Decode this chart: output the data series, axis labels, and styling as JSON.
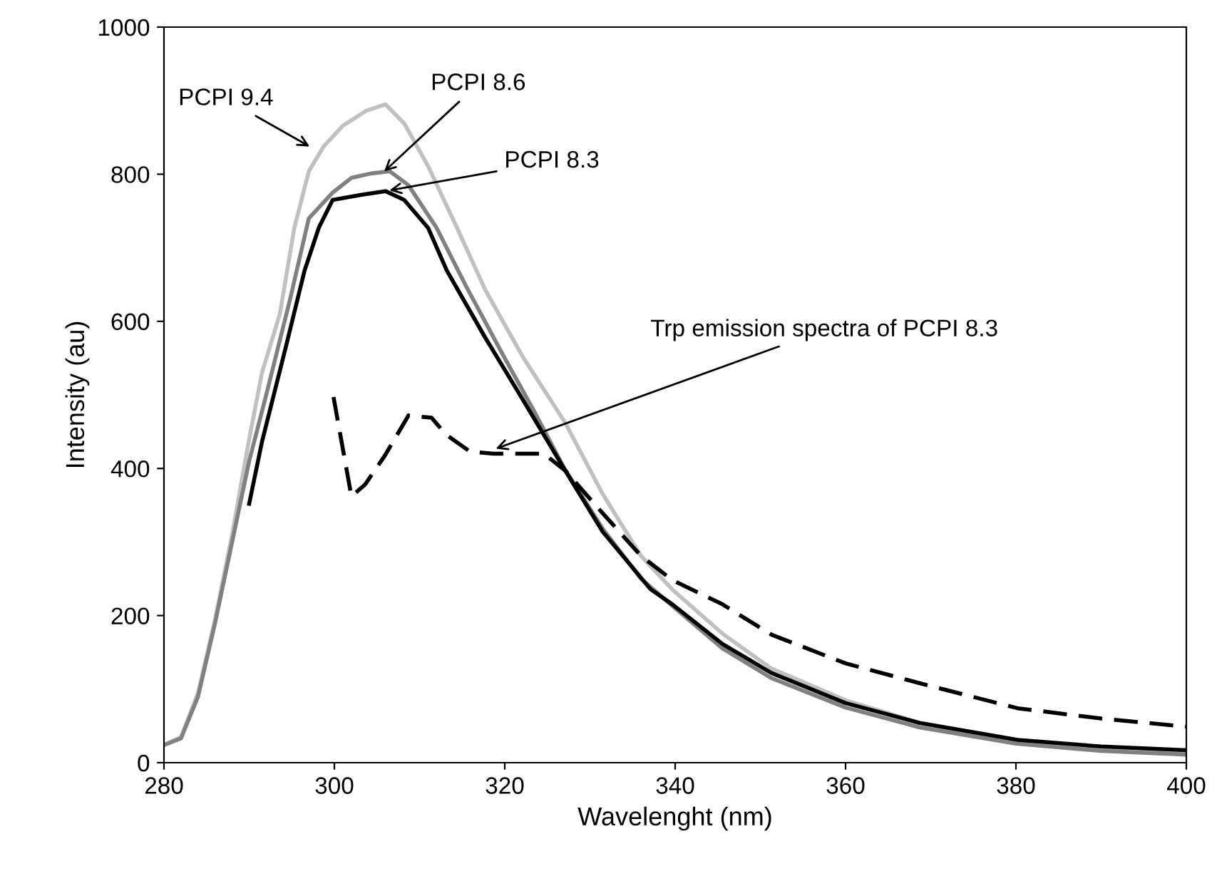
{
  "chart_data": {
    "type": "line",
    "xlabel": "Wavelenght (nm)",
    "ylabel": "Intensity (au)",
    "xlim": [
      280,
      400
    ],
    "xticks": [
      280,
      300,
      320,
      340,
      360,
      380,
      400
    ],
    "ylim": [
      0,
      1000
    ],
    "yticks": [
      0,
      200,
      400,
      600,
      800,
      1000
    ],
    "grid": false,
    "legend": false,
    "marker": "none",
    "series": [
      {
        "color": "#c0c0c0",
        "line_style": "solid",
        "x": [
          280,
          282,
          284,
          286,
          288,
          290,
          291.5,
          293.6,
          295.3,
          297,
          298.7,
          301,
          303.7,
          306,
          308.2,
          311,
          314.4,
          317.7,
          322.1,
          327.1,
          331.5,
          336,
          339.7,
          345.6,
          351.3,
          360,
          368.7,
          380,
          390,
          400
        ],
        "values": [
          24,
          35,
          95,
          195,
          310,
          440,
          530,
          610,
          727,
          804,
          837,
          866,
          886,
          895,
          869,
          811,
          727,
          643,
          552,
          462,
          365,
          281,
          235,
          175,
          128,
          85,
          54,
          28,
          18,
          14
        ]
      },
      {
        "color": "#808080",
        "line_style": "solid",
        "x": [
          280,
          282,
          284,
          286,
          288,
          290,
          292,
          294.8,
          297,
          299.8,
          302,
          304.3,
          306.5,
          308.7,
          312,
          315.4,
          319.9,
          323.3,
          327,
          331.5,
          336,
          340,
          345.6,
          351.3,
          360,
          368.7,
          380,
          390,
          400
        ],
        "values": [
          24,
          33,
          90,
          190,
          300,
          410,
          500,
          630,
          740,
          775,
          795,
          801,
          804,
          785,
          727,
          649,
          552,
          481,
          400,
          318,
          250,
          210,
          155,
          115,
          75,
          48,
          26,
          16,
          11
        ]
      },
      {
        "color": "#000000",
        "line_style": "solid",
        "x": [
          290,
          291.5,
          294.3,
          296.5,
          298.2,
          299.8,
          303.2,
          306,
          308.2,
          311,
          313.2,
          317.7,
          322.1,
          327.1,
          331.5,
          337.1,
          339.7,
          345.6,
          351.3,
          360,
          368.7,
          380.2,
          390,
          400
        ],
        "values": [
          352,
          436,
          565,
          669,
          728,
          765,
          772,
          777,
          765,
          727,
          669,
          578,
          494,
          397,
          314,
          236,
          215,
          161,
          122,
          81,
          54,
          31,
          22,
          17
        ]
      },
      {
        "color": "#000000",
        "line_style": "dashed",
        "x": [
          299.9,
          302,
          303.6,
          305.9,
          308.7,
          311.4,
          313.1,
          315.9,
          318.7,
          321.5,
          324.6,
          327.1,
          331.5,
          336,
          339.7,
          345.6,
          351.3,
          360,
          368.7,
          380.2,
          390,
          400
        ],
        "values": [
          497,
          362,
          378,
          417,
          472,
          469,
          446,
          423,
          420,
          420,
          420,
          397,
          339,
          281,
          248,
          215,
          174,
          135,
          108,
          74,
          60,
          49
        ]
      }
    ],
    "annotations": [
      {
        "text": "PCPI 9.4",
        "x": 297.5,
        "y": 835
      },
      {
        "text": "PCPI 8.6",
        "x": 305.5,
        "y": 800
      },
      {
        "text": "PCPI 8.3",
        "x": 306,
        "y": 777
      },
      {
        "text": "Trp emission spectra of PCPI 8.3",
        "x": 318.5,
        "y": 425
      }
    ]
  }
}
